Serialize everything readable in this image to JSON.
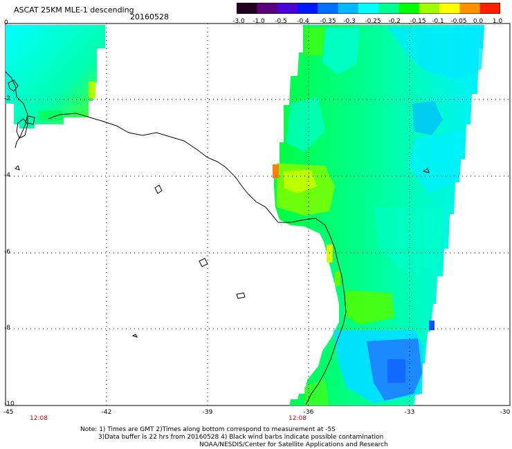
{
  "title": "ASCAT 25KM MLE-1 descending",
  "date": "20160528",
  "colorbar": {
    "labels": [
      "-3.0",
      "-1.0",
      "-0.5",
      "-0.4",
      "-0.35",
      "-0.3",
      "-0.25",
      "-0.2",
      "-0.15",
      "-0.1",
      "-0.05",
      "0.0",
      "1.0"
    ],
    "colors": [
      "#220022",
      "#5a007a",
      "#4a00d8",
      "#0018ff",
      "#0070ff",
      "#00b8ff",
      "#00ffff",
      "#00ff90",
      "#00ff00",
      "#a0ff00",
      "#ffff00",
      "#ff9000",
      "#ff2000"
    ]
  },
  "axes": {
    "x_ticks": [
      "-45",
      "-42",
      "-39",
      "-36",
      "-33",
      "-30"
    ],
    "y_ticks": [
      "0",
      "-2",
      "-4",
      "-6",
      "-8",
      "-10"
    ]
  },
  "time_labels": [
    "12:08",
    "12:08"
  ],
  "time_color": "#cc0000",
  "notes": [
    "Note: 1) Times are GMT 2)Times along bottom correspond to measurement at -5S",
    "3)Data buffer is 22 hrs from 20160528 4) Black wind barbs indicate possible contamination",
    "NOAA/NESDIS/Center for Satellite Applications and Research"
  ]
}
